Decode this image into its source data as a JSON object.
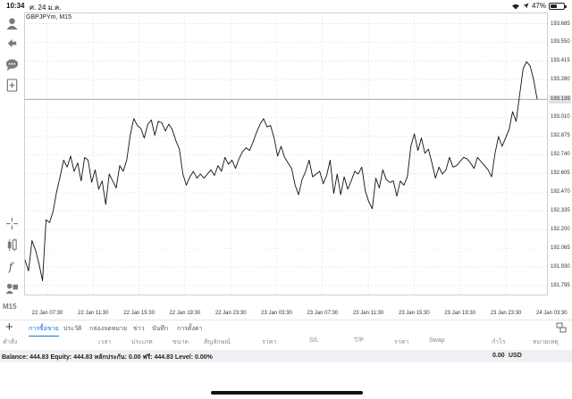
{
  "status": {
    "time": "10:34",
    "date": "ศ. 24 ม.ค.",
    "battery": "47%",
    "battery_level": 0.47
  },
  "chart": {
    "symbol": "GBPJPYm, M15",
    "price_ticks": [
      "193.685",
      "193.550",
      "193.415",
      "193.280",
      "193.010",
      "192.875",
      "192.740",
      "192.605",
      "192.470",
      "192.335",
      "192.200",
      "192.065",
      "191.930",
      "191.795"
    ],
    "current_price": "193.139",
    "time_ticks": [
      "22 Jan 07:30",
      "22 Jan 11:30",
      "22 Jan 15:30",
      "22 Jan 19:30",
      "22 Jan 23:30",
      "23 Jan 03:30",
      "23 Jan 07:30",
      "23 Jan 11:30",
      "23 Jan 15:30",
      "23 Jan 19:30",
      "23 Jan 23:30",
      "24 Jan 03:30"
    ]
  },
  "chart_data": {
    "type": "line",
    "symbol": "GBPJPYm",
    "timeframe": "M15",
    "ylim": [
      191.73,
      193.74
    ],
    "current_price": 193.139,
    "grid": true,
    "series": [
      {
        "values": [
          191.98,
          191.9,
          192.12,
          192.05,
          191.95,
          191.83,
          192.27,
          192.25,
          192.33,
          192.47,
          192.58,
          192.7,
          192.65,
          192.73,
          192.62,
          192.68,
          192.55,
          192.72,
          192.7,
          192.54,
          192.63,
          192.49,
          192.55,
          192.38,
          192.6,
          192.55,
          192.5,
          192.66,
          192.62,
          192.7,
          192.88,
          193.0,
          192.95,
          192.93,
          192.86,
          192.96,
          192.99,
          192.88,
          192.98,
          192.97,
          192.91,
          192.96,
          192.92,
          192.84,
          192.78,
          192.6,
          192.52,
          192.58,
          192.62,
          192.57,
          192.6,
          192.57,
          192.6,
          192.63,
          192.59,
          192.66,
          192.62,
          192.72,
          192.67,
          192.7,
          192.64,
          192.71,
          192.76,
          192.79,
          192.77,
          192.83,
          192.9,
          192.96,
          193.0,
          192.94,
          192.95,
          192.86,
          192.73,
          192.8,
          192.72,
          192.68,
          192.64,
          192.52,
          192.45,
          192.56,
          192.62,
          192.7,
          192.58,
          192.6,
          192.62,
          192.53,
          192.59,
          192.7,
          192.46,
          192.6,
          192.45,
          192.58,
          192.49,
          192.55,
          192.62,
          192.6,
          192.65,
          192.48,
          192.4,
          192.35,
          192.57,
          192.5,
          192.63,
          192.56,
          192.54,
          192.55,
          192.44,
          192.55,
          192.52,
          192.58,
          192.8,
          192.89,
          192.77,
          192.86,
          192.75,
          192.78,
          192.68,
          192.57,
          192.65,
          192.6,
          192.63,
          192.72,
          192.65,
          192.66,
          192.69,
          192.72,
          192.71,
          192.68,
          192.64,
          192.72,
          192.69,
          192.66,
          192.63,
          192.58,
          192.75,
          192.87,
          192.8,
          192.86,
          192.92,
          193.05,
          192.98,
          193.17,
          193.36,
          193.41,
          193.38,
          193.28,
          193.14
        ]
      }
    ]
  },
  "tabs": {
    "plus": "+",
    "items": [
      {
        "label": "การซื้อขาย",
        "active": true
      },
      {
        "label": "ประวัติ",
        "active": false
      },
      {
        "label": "กล่องจดหมาย",
        "active": false
      },
      {
        "label": "ข่าว",
        "active": false
      },
      {
        "label": "บันทึก",
        "active": false
      },
      {
        "label": "การตั้งค่า",
        "active": false
      }
    ]
  },
  "columns": [
    "คำสั่ง",
    "เวลา",
    "ประเภท",
    "ขนาด",
    "สัญลักษณ์",
    "ราคา",
    "S/L",
    "T/P",
    "ราคา",
    "Swap",
    "กำไร",
    "หมายเหตุ"
  ],
  "balance": {
    "text": "Balance: 444.83 Equity: 444.83 หลักประกัน: 0.00 ฟรี: 444.83 Level: 0.00%",
    "amount": "0.00",
    "currency": "USD"
  },
  "timeframe_label": "M15",
  "colors": {
    "accent": "#1a73e8",
    "price_line": "#8a9bb0",
    "grid": "#d3d3d3"
  }
}
